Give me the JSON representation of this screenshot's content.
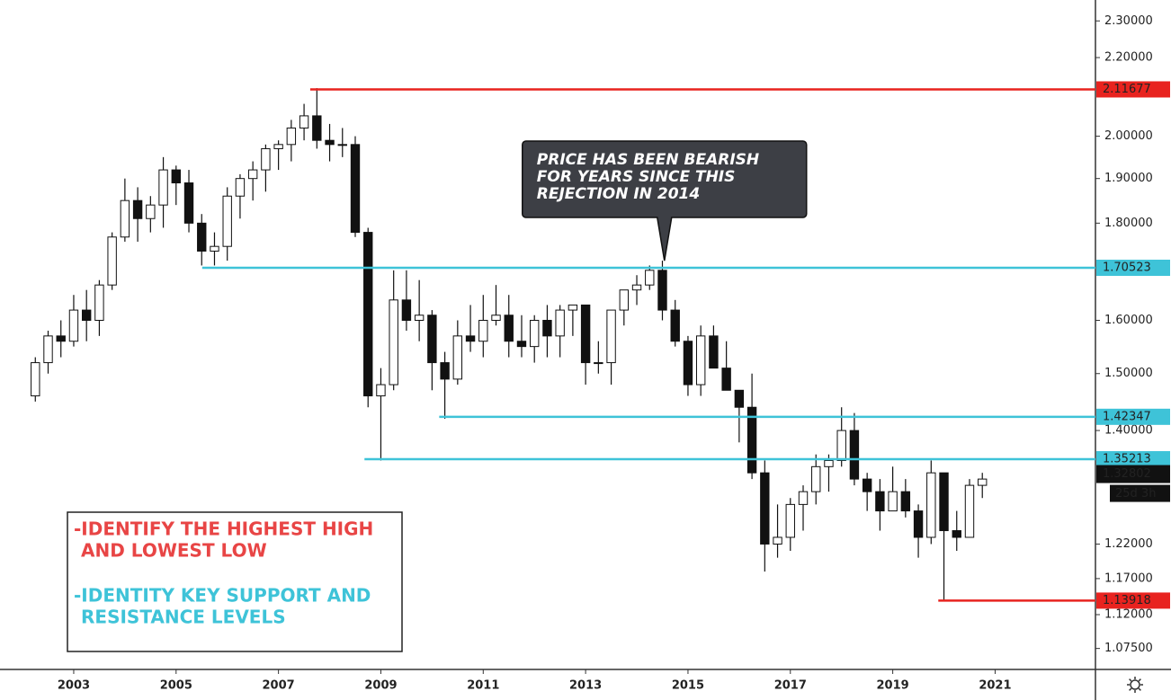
{
  "chart_data": {
    "type": "candlestick",
    "log_scale": true,
    "grid": false,
    "up_color": "#ffffff",
    "down_color": "#111111",
    "xlim": [
      2001.56,
      2022.96
    ],
    "xticks": [
      2003,
      2005,
      2007,
      2009,
      2011,
      2013,
      2015,
      2017,
      2019,
      2021
    ],
    "ylim": [
      1.048,
      2.359
    ],
    "yticks": [
      {
        "value": 2.3,
        "label": "2.30000"
      },
      {
        "value": 2.2,
        "label": "2.20000"
      },
      {
        "value": 2.0,
        "label": "2.00000"
      },
      {
        "value": 1.9,
        "label": "1.90000"
      },
      {
        "value": 1.8,
        "label": "1.80000"
      },
      {
        "value": 1.6,
        "label": "1.60000"
      },
      {
        "value": 1.5,
        "label": "1.50000"
      },
      {
        "value": 1.4,
        "label": "1.40000"
      },
      {
        "value": 1.22,
        "label": "1.22000"
      },
      {
        "value": 1.17,
        "label": "1.17000"
      },
      {
        "value": 1.12,
        "label": "1.12000"
      },
      {
        "value": 1.075,
        "label": "1.07500"
      }
    ],
    "x": [
      2002.25,
      2002.5,
      2002.75,
      2003.0,
      2003.25,
      2003.5,
      2003.75,
      2004.0,
      2004.25,
      2004.5,
      2004.75,
      2005.0,
      2005.25,
      2005.5,
      2005.75,
      2006.0,
      2006.25,
      2006.5,
      2006.75,
      2007.0,
      2007.25,
      2007.5,
      2007.75,
      2008.0,
      2008.25,
      2008.5,
      2008.75,
      2009.0,
      2009.25,
      2009.5,
      2009.75,
      2010.0,
      2010.25,
      2010.5,
      2010.75,
      2011.0,
      2011.25,
      2011.5,
      2011.75,
      2012.0,
      2012.25,
      2012.5,
      2012.75,
      2013.0,
      2013.25,
      2013.5,
      2013.75,
      2014.0,
      2014.25,
      2014.5,
      2014.75,
      2015.0,
      2015.25,
      2015.5,
      2015.75,
      2016.0,
      2016.25,
      2016.5,
      2016.75,
      2017.0,
      2017.25,
      2017.5,
      2017.75,
      2018.0,
      2018.25,
      2018.5,
      2018.75,
      2019.0,
      2019.25,
      2019.5,
      2019.75,
      2020.0,
      2020.25,
      2020.5,
      2020.75
    ],
    "open": [
      1.46,
      1.52,
      1.57,
      1.56,
      1.62,
      1.6,
      1.67,
      1.77,
      1.85,
      1.81,
      1.84,
      1.92,
      1.89,
      1.8,
      1.74,
      1.75,
      1.86,
      1.9,
      1.92,
      1.97,
      1.98,
      2.02,
      2.05,
      1.99,
      1.98,
      1.98,
      1.78,
      1.46,
      1.48,
      1.64,
      1.6,
      1.61,
      1.52,
      1.49,
      1.57,
      1.56,
      1.6,
      1.61,
      1.56,
      1.55,
      1.6,
      1.57,
      1.62,
      1.63,
      1.52,
      1.52,
      1.62,
      1.66,
      1.67,
      1.7,
      1.62,
      1.56,
      1.48,
      1.57,
      1.51,
      1.47,
      1.44,
      1.33,
      1.22,
      1.23,
      1.28,
      1.3,
      1.34,
      1.35,
      1.4,
      1.32,
      1.3,
      1.27,
      1.3,
      1.27,
      1.23,
      1.33,
      1.24,
      1.23,
      1.31
    ],
    "high": [
      1.53,
      1.58,
      1.6,
      1.65,
      1.66,
      1.68,
      1.78,
      1.9,
      1.88,
      1.86,
      1.95,
      1.93,
      1.92,
      1.82,
      1.78,
      1.88,
      1.91,
      1.94,
      1.98,
      1.99,
      2.04,
      2.08,
      2.12,
      2.03,
      2.02,
      2.0,
      1.79,
      1.51,
      1.7,
      1.7,
      1.68,
      1.62,
      1.54,
      1.6,
      1.63,
      1.65,
      1.67,
      1.65,
      1.61,
      1.61,
      1.63,
      1.63,
      1.63,
      1.63,
      1.56,
      1.62,
      1.66,
      1.69,
      1.71,
      1.72,
      1.64,
      1.57,
      1.59,
      1.59,
      1.56,
      1.47,
      1.5,
      1.35,
      1.28,
      1.29,
      1.31,
      1.36,
      1.36,
      1.44,
      1.43,
      1.33,
      1.32,
      1.34,
      1.32,
      1.28,
      1.35,
      1.33,
      1.27,
      1.32,
      1.33
    ],
    "low": [
      1.45,
      1.5,
      1.53,
      1.55,
      1.56,
      1.57,
      1.66,
      1.76,
      1.76,
      1.78,
      1.79,
      1.84,
      1.78,
      1.71,
      1.71,
      1.72,
      1.81,
      1.85,
      1.87,
      1.92,
      1.94,
      1.99,
      1.97,
      1.94,
      1.95,
      1.77,
      1.44,
      1.35,
      1.47,
      1.58,
      1.56,
      1.47,
      1.42,
      1.48,
      1.54,
      1.53,
      1.59,
      1.53,
      1.53,
      1.52,
      1.53,
      1.53,
      1.57,
      1.48,
      1.5,
      1.48,
      1.59,
      1.63,
      1.66,
      1.6,
      1.55,
      1.46,
      1.46,
      1.51,
      1.47,
      1.38,
      1.32,
      1.18,
      1.2,
      1.21,
      1.24,
      1.28,
      1.3,
      1.34,
      1.31,
      1.27,
      1.24,
      1.27,
      1.26,
      1.2,
      1.22,
      1.14,
      1.21,
      1.23,
      1.29
    ],
    "close": [
      1.52,
      1.57,
      1.56,
      1.62,
      1.6,
      1.67,
      1.77,
      1.85,
      1.81,
      1.84,
      1.92,
      1.89,
      1.8,
      1.74,
      1.75,
      1.86,
      1.9,
      1.92,
      1.97,
      1.98,
      2.02,
      2.05,
      1.99,
      1.98,
      1.98,
      1.78,
      1.46,
      1.48,
      1.64,
      1.6,
      1.61,
      1.52,
      1.49,
      1.57,
      1.56,
      1.6,
      1.61,
      1.56,
      1.55,
      1.6,
      1.57,
      1.62,
      1.63,
      1.52,
      1.52,
      1.62,
      1.66,
      1.67,
      1.7,
      1.62,
      1.56,
      1.48,
      1.57,
      1.51,
      1.47,
      1.44,
      1.33,
      1.22,
      1.23,
      1.28,
      1.3,
      1.34,
      1.35,
      1.4,
      1.32,
      1.3,
      1.27,
      1.3,
      1.27,
      1.23,
      1.33,
      1.24,
      1.23,
      1.31,
      1.32
    ],
    "levels": [
      {
        "value": 2.11677,
        "label": "2.11677",
        "color": "#e8231f",
        "start": 2007.62
      },
      {
        "value": 1.70523,
        "label": "1.70523",
        "color": "#3ec3d8",
        "start": 2005.51
      },
      {
        "value": 1.42347,
        "label": "1.42347",
        "color": "#3ec3d8",
        "start": 2010.14
      },
      {
        "value": 1.35213,
        "label": "1.35213",
        "color": "#3ec3d8",
        "start": 2008.68
      },
      {
        "value": 1.13918,
        "label": "1.13918",
        "color": "#e8231f",
        "start": 2019.89
      }
    ],
    "current": {
      "value": 1.32802,
      "label": "1.32802",
      "countdown": "25d 3h"
    },
    "annotation": {
      "lines": [
        "PRICE HAS BEEN BEARISH",
        "FOR YEARS SINCE THIS",
        "REJECTION IN 2014"
      ],
      "x": 2014.54,
      "y": 1.72
    },
    "notes": [
      {
        "lines": [
          "-IDENTIFY THE HIGHEST HIGH",
          "AND LOWEST LOW"
        ],
        "color": "#e84545"
      },
      {
        "lines": [
          "-IDENTITY KEY SUPPORT AND",
          "RESISTANCE LEVELS"
        ],
        "color": "#3ec3d8"
      }
    ]
  }
}
